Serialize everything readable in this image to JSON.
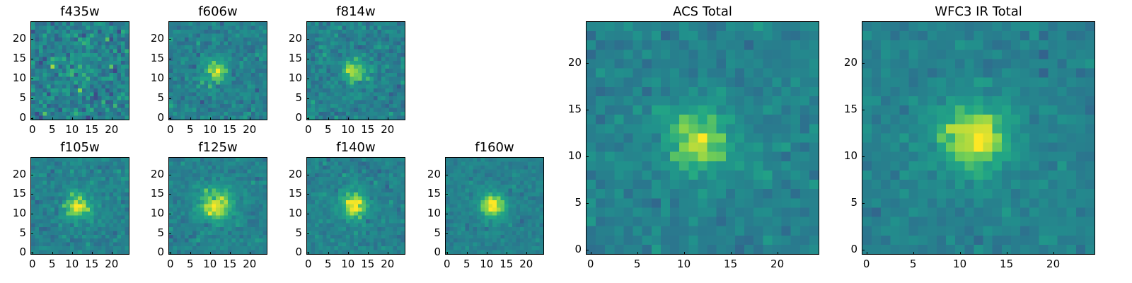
{
  "figure": {
    "panels": [
      {
        "title": "f435w",
        "x_ticks": [
          "0",
          "5",
          "10",
          "15",
          "20"
        ],
        "y_ticks": [
          "0",
          "5",
          "10",
          "15",
          "20"
        ],
        "noise": 0.85,
        "peak": 0.25,
        "blob_sigma": 3.0
      },
      {
        "title": "f606w",
        "x_ticks": [
          "0",
          "5",
          "10",
          "15",
          "20"
        ],
        "y_ticks": [
          "0",
          "5",
          "10",
          "15",
          "20"
        ],
        "noise": 0.55,
        "peak": 0.75,
        "blob_sigma": 2.0
      },
      {
        "title": "f814w",
        "x_ticks": [
          "0",
          "5",
          "10",
          "15",
          "20"
        ],
        "y_ticks": [
          "0",
          "5",
          "10",
          "15",
          "20"
        ],
        "noise": 0.55,
        "peak": 0.7,
        "blob_sigma": 2.2
      },
      {
        "title": "f105w",
        "x_ticks": [
          "0",
          "5",
          "10",
          "15",
          "20"
        ],
        "y_ticks": [
          "0",
          "5",
          "10",
          "15",
          "20"
        ],
        "noise": 0.45,
        "peak": 0.8,
        "blob_sigma": 2.5
      },
      {
        "title": "f125w",
        "x_ticks": [
          "0",
          "5",
          "10",
          "15",
          "20"
        ],
        "y_ticks": [
          "0",
          "5",
          "10",
          "15",
          "20"
        ],
        "noise": 0.4,
        "peak": 0.75,
        "blob_sigma": 3.2
      },
      {
        "title": "f140w",
        "x_ticks": [
          "0",
          "5",
          "10",
          "15",
          "20"
        ],
        "y_ticks": [
          "0",
          "5",
          "10",
          "15",
          "20"
        ],
        "noise": 0.45,
        "peak": 0.8,
        "blob_sigma": 2.6
      },
      {
        "title": "f160w",
        "x_ticks": [
          "0",
          "5",
          "10",
          "15",
          "20"
        ],
        "y_ticks": [
          "0",
          "5",
          "10",
          "15",
          "20"
        ],
        "noise": 0.35,
        "peak": 0.85,
        "blob_sigma": 2.3
      },
      {
        "title": "ACS Total",
        "x_ticks": [
          "0",
          "5",
          "10",
          "15",
          "20"
        ],
        "y_ticks": [
          "0",
          "5",
          "10",
          "15",
          "20"
        ],
        "noise": 0.4,
        "peak": 0.75,
        "blob_sigma": 2.6
      },
      {
        "title": "WFC3 IR Total",
        "x_ticks": [
          "0",
          "5",
          "10",
          "15",
          "20"
        ],
        "y_ticks": [
          "0",
          "5",
          "10",
          "15",
          "20"
        ],
        "noise": 0.35,
        "peak": 0.8,
        "blob_sigma": 2.8
      }
    ],
    "colormap": "viridis",
    "image_size": 25
  }
}
